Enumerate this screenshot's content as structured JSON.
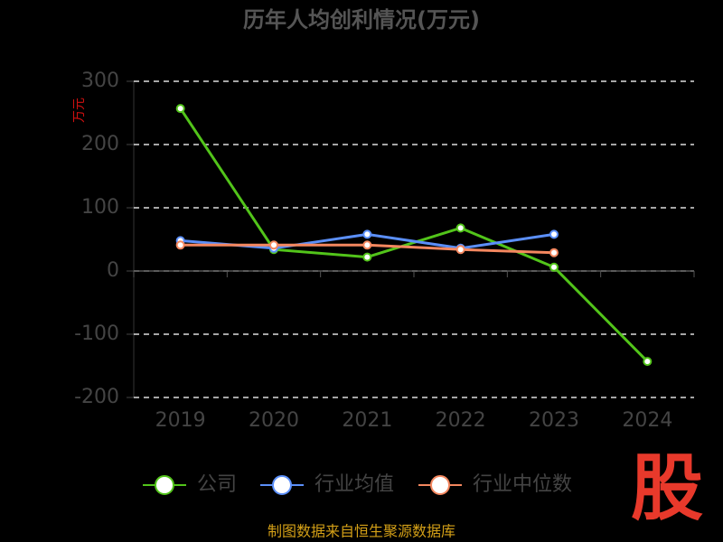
{
  "chart_data": {
    "type": "line",
    "title": "历年人均创利情况(万元)",
    "y_label": "万元",
    "categories": [
      "2019",
      "2020",
      "2021",
      "2022",
      "2023",
      "2024"
    ],
    "series": [
      {
        "name": "公司",
        "color": "#52c41a",
        "values": [
          257,
          34,
          22,
          68,
          6,
          -143
        ]
      },
      {
        "name": "行业均值",
        "color": "#5b8ff9",
        "values": [
          48,
          36,
          58,
          36,
          58,
          null
        ]
      },
      {
        "name": "行业中位数",
        "color": "#f4875f",
        "values": [
          41,
          41,
          41,
          34,
          29,
          null
        ]
      }
    ],
    "ylim": [
      -200,
      300
    ],
    "yticks": [
      -200,
      -100,
      0,
      100,
      200,
      300
    ],
    "grid": true,
    "legend": "bottom",
    "source": "制图数据来自恒生聚源数据库",
    "watermark": "股"
  }
}
